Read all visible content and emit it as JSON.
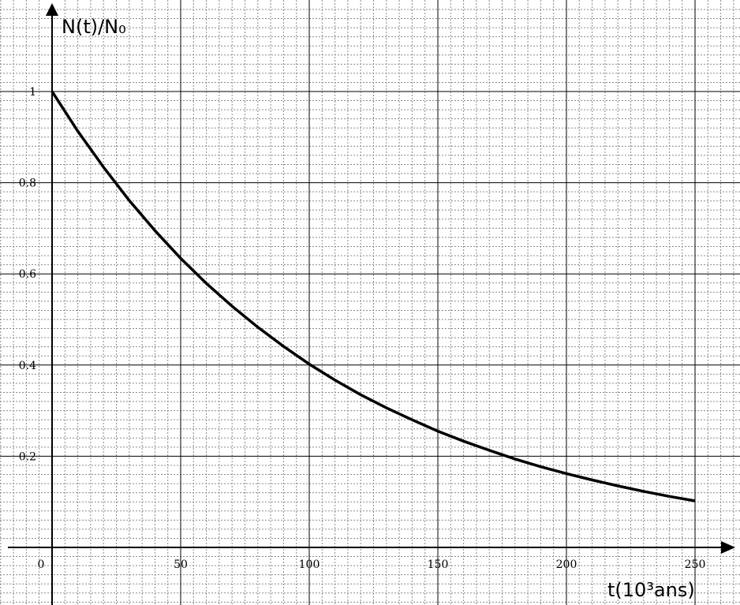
{
  "chart_data": {
    "type": "line",
    "title": "",
    "ylabel": "N(t)/N₀",
    "xlabel": "t(10³ans)",
    "xlim": [
      0,
      250
    ],
    "ylim": [
      0,
      1
    ],
    "x_ticks": [
      0,
      50,
      100,
      150,
      200,
      250
    ],
    "x_tick_labels": [
      "0",
      "50",
      "100",
      "150",
      "200",
      "250"
    ],
    "y_ticks": [
      0.2,
      0.4,
      0.6,
      0.8,
      1
    ],
    "y_tick_labels": [
      "0.2",
      "0.4",
      "0.6",
      "0.8",
      "1"
    ],
    "grid": true,
    "series": [
      {
        "x": [
          0,
          10,
          20,
          30,
          40,
          50,
          60,
          70,
          80,
          90,
          100,
          110,
          120,
          130,
          140,
          150,
          160,
          170,
          180,
          190,
          200,
          210,
          220,
          230,
          240,
          250
        ],
        "y": [
          1.0,
          0.913,
          0.834,
          0.761,
          0.695,
          0.634,
          0.579,
          0.529,
          0.483,
          0.441,
          0.402,
          0.367,
          0.335,
          0.306,
          0.28,
          0.255,
          0.233,
          0.213,
          0.194,
          0.177,
          0.162,
          0.148,
          0.135,
          0.123,
          0.112,
          0.102
        ],
        "color": "#000000"
      }
    ]
  }
}
